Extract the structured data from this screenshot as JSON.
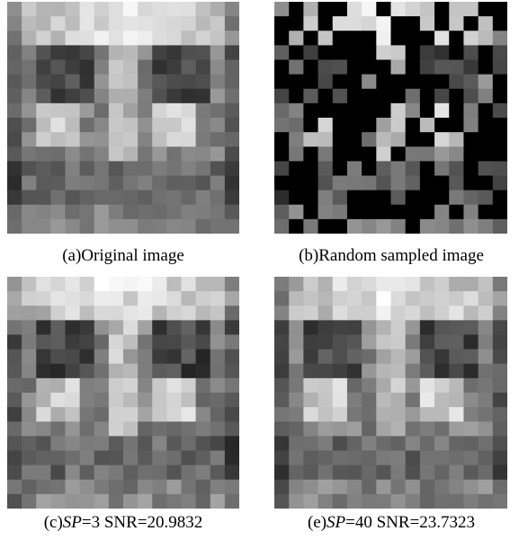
{
  "figure": {
    "panels": [
      {
        "label": "(a)Original image"
      },
      {
        "label": "(b)Random sampled image"
      },
      {
        "prefix": "(c)",
        "variable": "SP",
        "rest": "=3 SNR=20.9832"
      },
      {
        "prefix": "(e)",
        "variable": "SP",
        "rest": "=40 SNR=23.7323"
      }
    ]
  }
}
